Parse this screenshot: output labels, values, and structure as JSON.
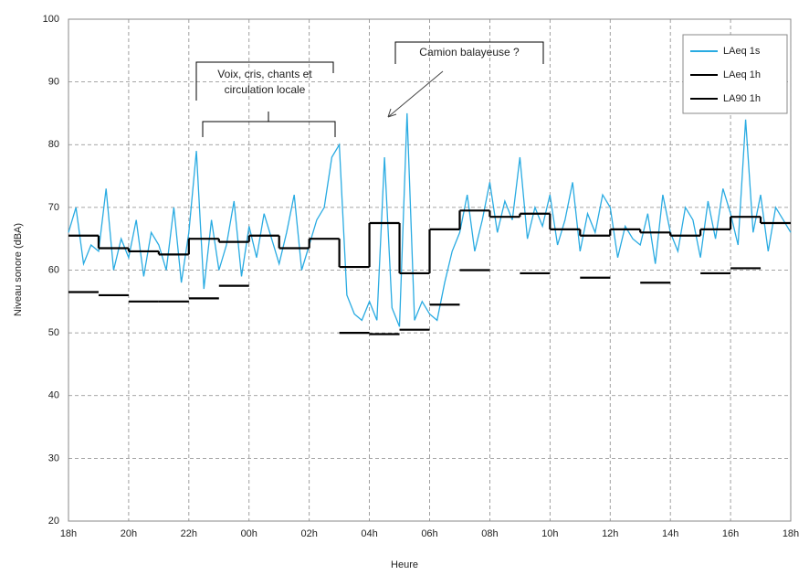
{
  "chart_data": {
    "type": "line",
    "x_label": "Heure",
    "y_label": "Niveau sonore (dBA)",
    "xlim": [
      0,
      24
    ],
    "xticks": [
      {
        "value": 0,
        "label": "18h"
      },
      {
        "value": 2,
        "label": "20h"
      },
      {
        "value": 4,
        "label": "22h"
      },
      {
        "value": 6,
        "label": "00h"
      },
      {
        "value": 8,
        "label": "02h"
      },
      {
        "value": 10,
        "label": "04h"
      },
      {
        "value": 12,
        "label": "06h"
      },
      {
        "value": 14,
        "label": "08h"
      },
      {
        "value": 16,
        "label": "10h"
      },
      {
        "value": 18,
        "label": "12h"
      },
      {
        "value": 20,
        "label": "14h"
      },
      {
        "value": 22,
        "label": "16h"
      },
      {
        "value": 24,
        "label": "18h"
      }
    ],
    "ylim": [
      20,
      100
    ],
    "yticks": [
      20,
      30,
      40,
      50,
      60,
      70,
      80,
      90,
      100
    ],
    "grid": true,
    "legend": "upper right",
    "annotations": [
      "Voix, cris, chants et circulation locale",
      "Camion balayeuse ?"
    ],
    "series": [
      {
        "name": "LAeq 1s",
        "color": "#29abe2",
        "style": "line",
        "x": [
          0,
          0.25,
          0.5,
          0.75,
          1,
          1.25,
          1.5,
          1.75,
          2,
          2.25,
          2.5,
          2.75,
          3,
          3.25,
          3.5,
          3.75,
          4,
          4.25,
          4.5,
          4.75,
          5,
          5.25,
          5.5,
          5.75,
          6,
          6.25,
          6.5,
          6.75,
          7,
          7.25,
          7.5,
          7.75,
          8,
          8.25,
          8.5,
          8.75,
          9,
          9.25,
          9.5,
          9.75,
          10,
          10.25,
          10.5,
          10.75,
          11,
          11.25,
          11.5,
          11.75,
          12,
          12.25,
          12.5,
          12.75,
          13,
          13.25,
          13.5,
          13.75,
          14,
          14.25,
          14.5,
          14.75,
          15,
          15.25,
          15.5,
          15.75,
          16,
          16.25,
          16.5,
          16.75,
          17,
          17.25,
          17.5,
          17.75,
          18,
          18.25,
          18.5,
          18.75,
          19,
          19.25,
          19.5,
          19.75,
          20,
          20.25,
          20.5,
          20.75,
          21,
          21.25,
          21.5,
          21.75,
          22,
          22.25,
          22.5,
          22.75,
          23,
          23.25,
          23.5,
          23.75,
          24
        ],
        "values": [
          66,
          70,
          61,
          64,
          63,
          73,
          60,
          65,
          62,
          68,
          59,
          66,
          64,
          60,
          70,
          58,
          66,
          79,
          57,
          68,
          60,
          64,
          71,
          59,
          67,
          62,
          69,
          65,
          61,
          66,
          72,
          60,
          64,
          68,
          70,
          78,
          80,
          56,
          53,
          52,
          55,
          52,
          78,
          54,
          51,
          85,
          52,
          55,
          53,
          52,
          58,
          63,
          66,
          72,
          63,
          68,
          74,
          66,
          71,
          68,
          78,
          65,
          70,
          67,
          72,
          64,
          68,
          74,
          63,
          69,
          66,
          72,
          70,
          62,
          67,
          65,
          64,
          69,
          61,
          72,
          66,
          63,
          70,
          68,
          62,
          71,
          65,
          73,
          69,
          64,
          84,
          66,
          72,
          63,
          70,
          68,
          66
        ]
      },
      {
        "name": "LAeq 1h",
        "color": "#000000",
        "style": "step",
        "x": [
          0,
          1,
          2,
          3,
          4,
          5,
          6,
          7,
          8,
          9,
          10,
          11,
          12,
          13,
          14,
          15,
          16,
          17,
          18,
          19,
          20,
          21,
          22,
          23
        ],
        "values": [
          65.5,
          63.5,
          63,
          62.5,
          65,
          64.5,
          65.5,
          63.5,
          65,
          60.5,
          67.5,
          59.5,
          66.5,
          69.5,
          68.5,
          69,
          66.5,
          65.5,
          66.5,
          66,
          65.5,
          66.5,
          68.5,
          67.5
        ]
      },
      {
        "name": "LA90 1h",
        "color": "#000000",
        "style": "step",
        "x": [
          0,
          1,
          2,
          3,
          4,
          5,
          6,
          7,
          8,
          9,
          10,
          11,
          12,
          13,
          14,
          15,
          16,
          17,
          18,
          19,
          20,
          21,
          22,
          23
        ],
        "values": [
          56.5,
          56,
          55,
          55,
          55.5,
          57.5,
          null,
          null,
          null,
          50,
          49.8,
          50.5,
          54.5,
          60,
          null,
          59.5,
          null,
          58.8,
          null,
          58,
          null,
          59.5,
          60.3,
          null
        ]
      }
    ]
  }
}
